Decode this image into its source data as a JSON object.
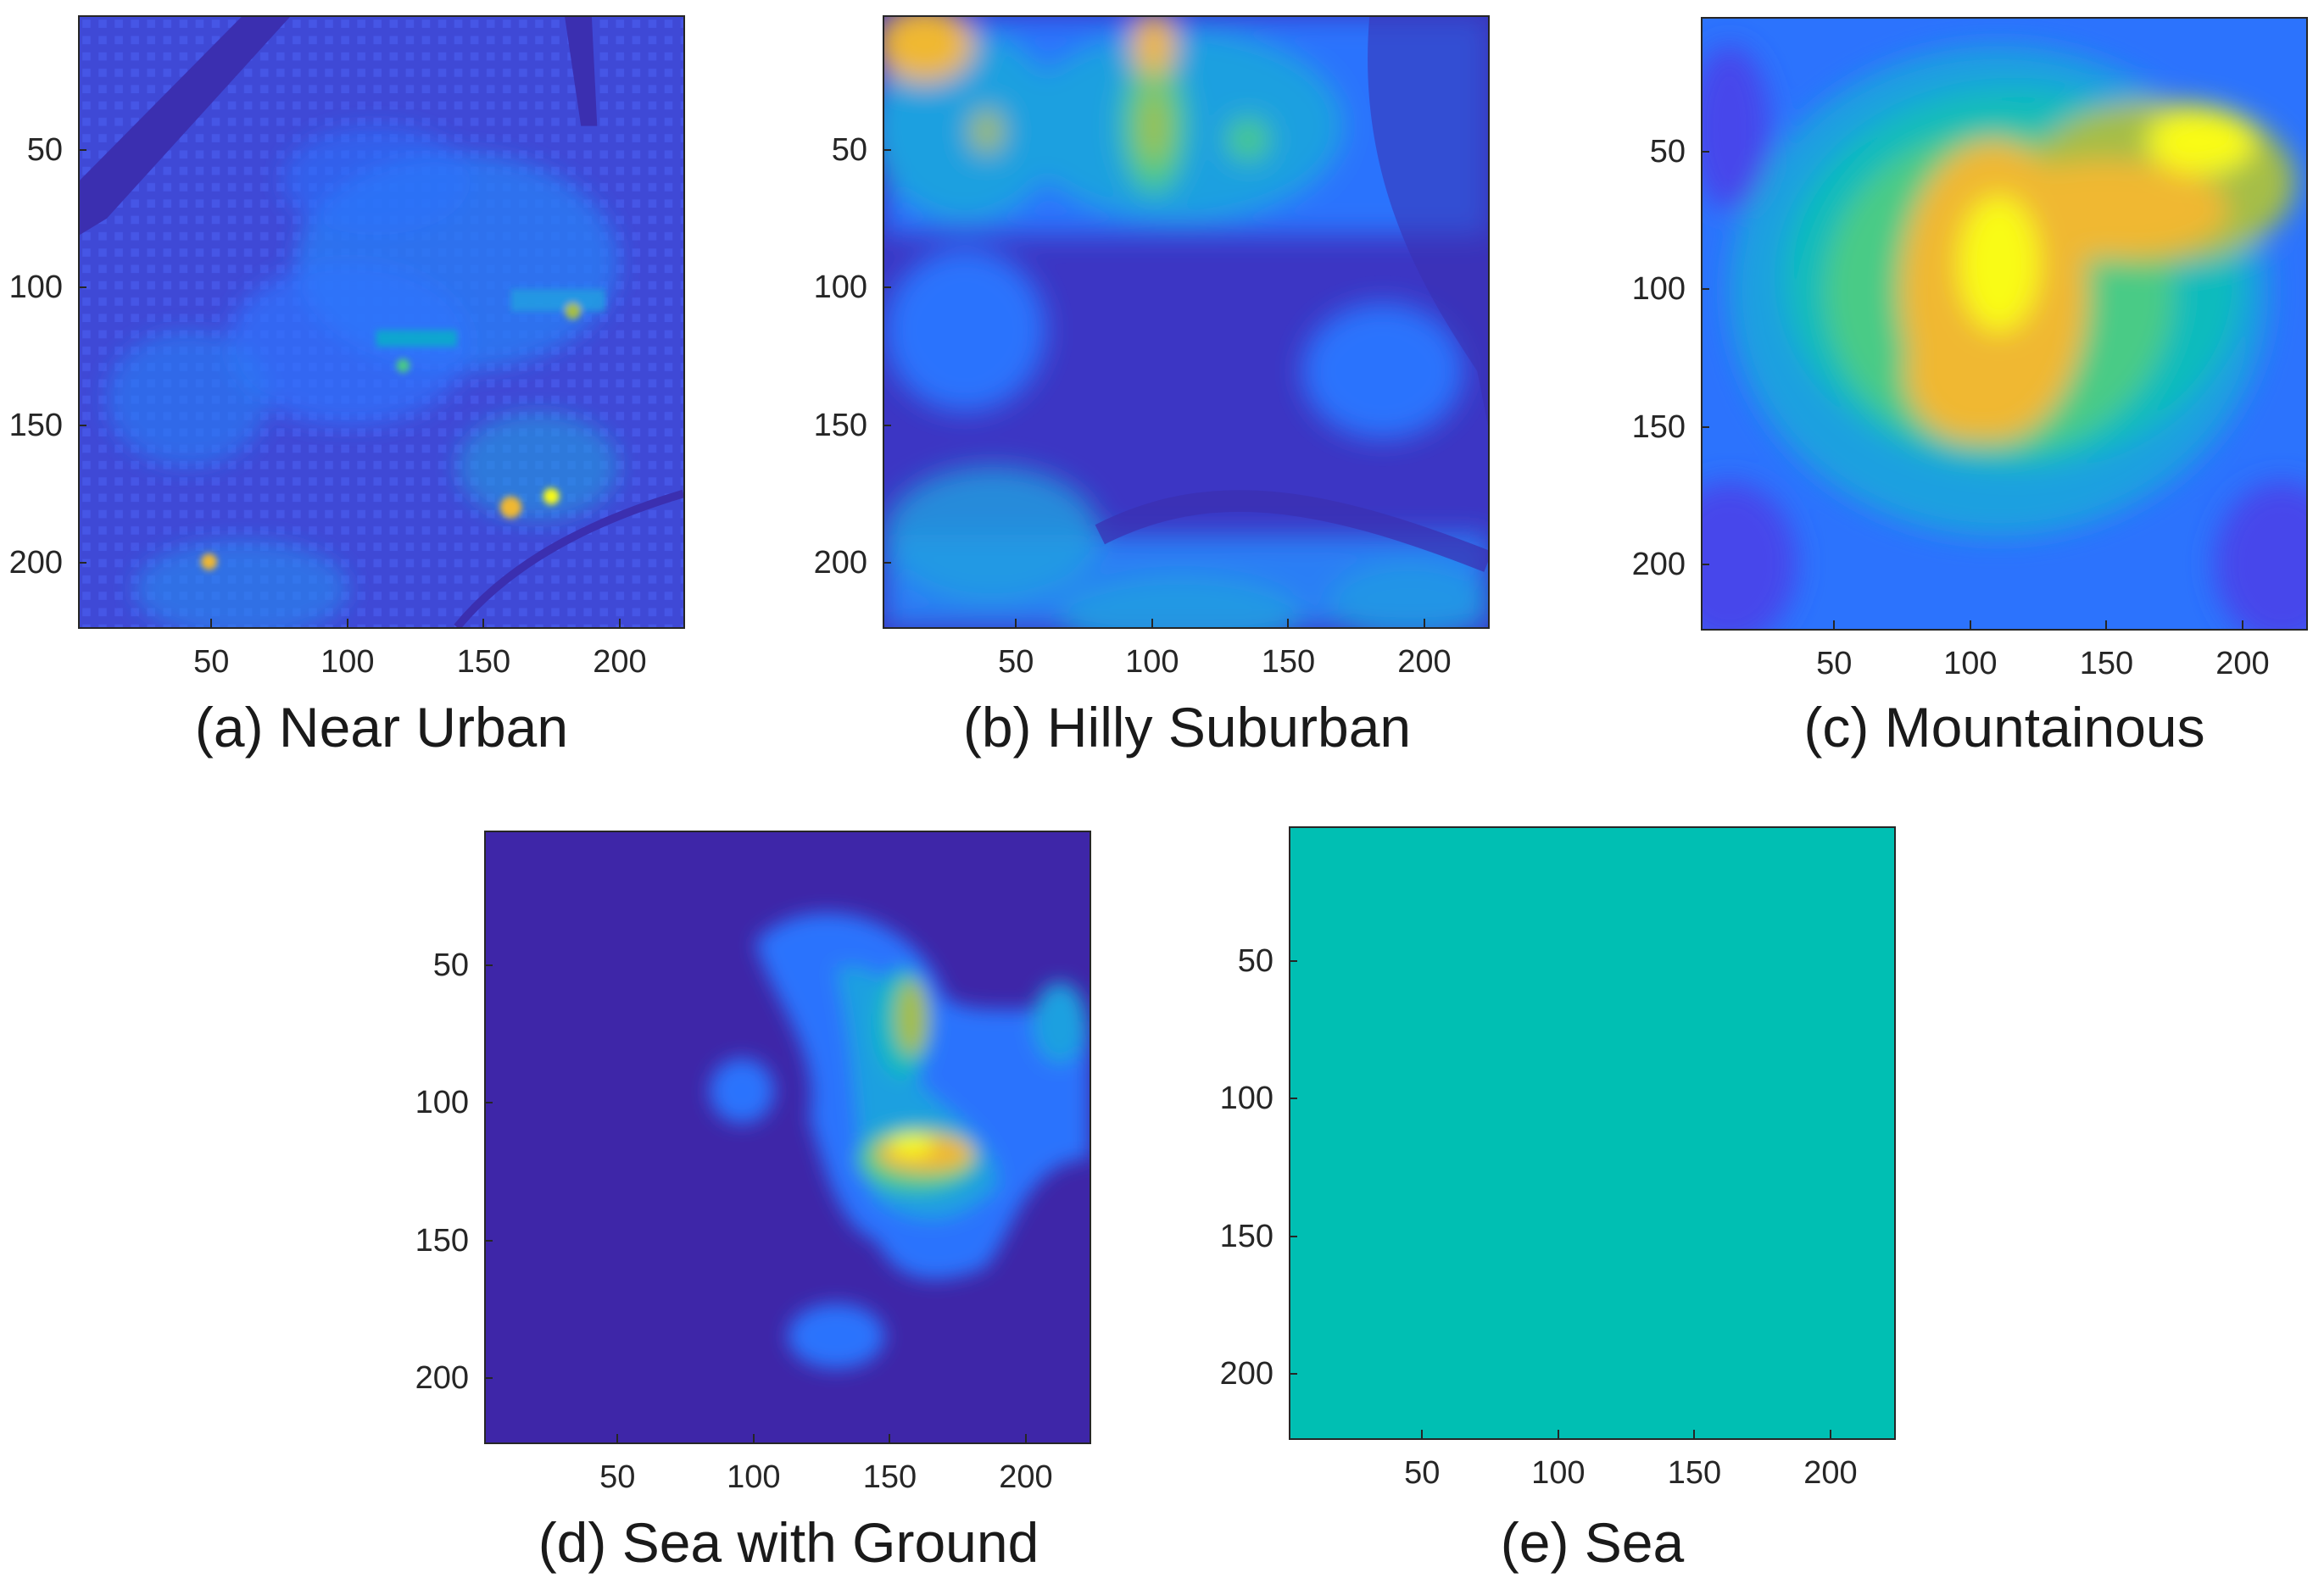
{
  "figure": {
    "colormap": "parula",
    "colormap_stops": [
      "#3e26a8",
      "#4746eb",
      "#2c73fd",
      "#1fa0e0",
      "#09bbbd",
      "#48cb86",
      "#a5be46",
      "#f0b832",
      "#f9fb15"
    ]
  },
  "chart_data": [
    {
      "type": "heatmap",
      "id": "a",
      "title": "(a) Near Urban",
      "xlabel": "",
      "ylabel": "",
      "xlim": [
        1,
        224
      ],
      "ylim": [
        1,
        224
      ],
      "xticks": [
        50,
        100,
        150,
        200
      ],
      "yticks": [
        50,
        100,
        150,
        200
      ],
      "y_reversed": true,
      "description_values": "terrain elevation map, mostly low values with scattered buildings"
    },
    {
      "type": "heatmap",
      "id": "b",
      "title": "(b) Hilly Suburban",
      "xlabel": "",
      "ylabel": "",
      "xlim": [
        1,
        224
      ],
      "ylim": [
        1,
        224
      ],
      "xticks": [
        50,
        100,
        150,
        200
      ],
      "yticks": [
        50,
        100,
        150,
        200
      ],
      "y_reversed": true
    },
    {
      "type": "heatmap",
      "id": "c",
      "title": "(c) Mountainous",
      "xlabel": "",
      "ylabel": "",
      "xlim": [
        1,
        224
      ],
      "ylim": [
        1,
        224
      ],
      "xticks": [
        50,
        100,
        150,
        200
      ],
      "yticks": [
        50,
        100,
        150,
        200
      ],
      "y_reversed": true
    },
    {
      "type": "heatmap",
      "id": "d",
      "title": "(d) Sea with Ground",
      "xlabel": "",
      "ylabel": "",
      "xlim": [
        1,
        224
      ],
      "ylim": [
        1,
        224
      ],
      "xticks": [
        50,
        100,
        150,
        200
      ],
      "yticks": [
        50,
        100,
        150,
        200
      ],
      "y_reversed": true
    },
    {
      "type": "heatmap",
      "id": "e",
      "title": "(e) Sea",
      "xlabel": "",
      "ylabel": "",
      "xlim": [
        1,
        224
      ],
      "ylim": [
        1,
        224
      ],
      "xticks": [
        50,
        100,
        150,
        200
      ],
      "yticks": [
        50,
        100,
        150,
        200
      ],
      "y_reversed": true,
      "uniform_color": "#00bfb3"
    }
  ]
}
